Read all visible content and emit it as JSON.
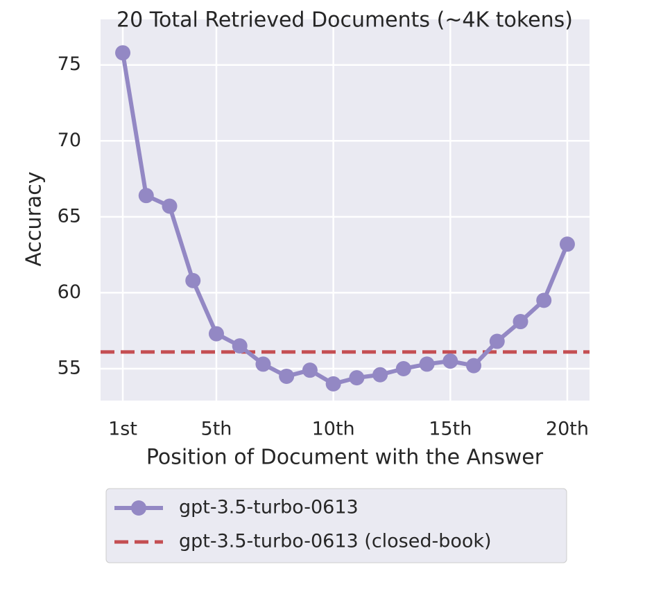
{
  "chart_data": {
    "type": "line",
    "title": "20 Total Retrieved Documents (~4K tokens)",
    "x_label": "Position of Document with the Answer",
    "y_label": "Accuracy",
    "x": [
      1,
      2,
      3,
      4,
      5,
      6,
      7,
      8,
      9,
      10,
      11,
      12,
      13,
      14,
      15,
      16,
      17,
      18,
      19,
      20
    ],
    "series": [
      {
        "name": "gpt-3.5-turbo-0613",
        "color": "#9388c4",
        "values": [
          75.8,
          66.4,
          65.7,
          60.8,
          57.3,
          56.5,
          55.3,
          54.5,
          54.9,
          54.0,
          54.4,
          54.6,
          55.0,
          55.3,
          55.5,
          55.2,
          56.8,
          58.1,
          59.5,
          63.2
        ]
      }
    ],
    "hlines": [
      {
        "name": "gpt-3.5-turbo-0613 (closed-book)",
        "color": "#c44e52",
        "value": 56.1
      }
    ],
    "xlim": [
      0.05,
      20.95
    ],
    "ylim": [
      52.9,
      78.0
    ],
    "xticks": [
      {
        "value": 1,
        "label": "1st"
      },
      {
        "value": 5,
        "label": "5th"
      },
      {
        "value": 10,
        "label": "10th"
      },
      {
        "value": 15,
        "label": "15th"
      },
      {
        "value": 20,
        "label": "20th"
      }
    ],
    "yticks": [
      55,
      60,
      65,
      70,
      75
    ],
    "grid": true,
    "legend": "below"
  }
}
